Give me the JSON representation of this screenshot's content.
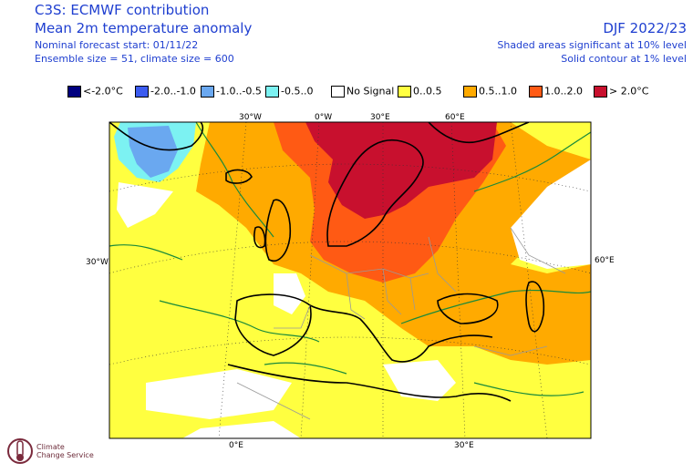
{
  "header": {
    "title": "C3S: ECMWF contribution",
    "subtitle": "Mean 2m temperature anomaly",
    "forecast_start": "Nominal forecast start: 01/11/22",
    "ensemble": "Ensemble size = 51, climate size = 600",
    "season": "DJF 2022/23",
    "significance_shaded": "Shaded areas significant at 10% level",
    "significance_contour": "Solid contour at 1% level"
  },
  "legend": [
    {
      "label": "<-2.0°C",
      "color": "#00007f"
    },
    {
      "label": "-2.0..-1.0",
      "color": "#3c5cf0"
    },
    {
      "label": "-1.0..-0.5",
      "color": "#6aa8f0"
    },
    {
      "label": "-0.5..0",
      "color": "#7cf2f2"
    },
    {
      "label": "No Signal",
      "color": "#ffffff"
    },
    {
      "label": "0..0.5",
      "color": "#ffff40"
    },
    {
      "label": "0.5..1.0",
      "color": "#ffaa00"
    },
    {
      "label": "1.0..2.0",
      "color": "#ff5a14"
    },
    {
      "label": "> 2.0°C",
      "color": "#c8102e"
    }
  ],
  "map": {
    "grid_labels_top": [
      "30°W",
      "0°W",
      "30°E",
      "60°E"
    ],
    "grid_label_left": "30°W",
    "grid_label_right": "60°E",
    "grid_labels_bottom": [
      "0°E",
      "30°E"
    ],
    "contour_color": "#1a8a3a",
    "border_color": "#999999",
    "coast_color": "#000000"
  },
  "logo": {
    "line1": "Climate",
    "line2": "Change Service"
  }
}
